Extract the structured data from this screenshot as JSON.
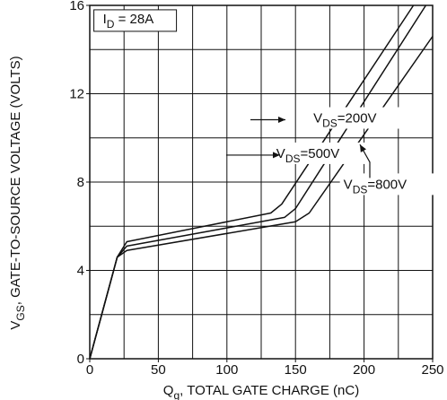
{
  "chart_data": {
    "type": "line",
    "xlabel": {
      "main": "Q",
      "sub": "g",
      "rest": ", TOTAL GATE CHARGE (nC)"
    },
    "ylabel": {
      "main": "V",
      "sub": "GS",
      "rest": ", GATE-TO-SOURCE VOLTAGE (VOLTS)"
    },
    "xlim": [
      0,
      250
    ],
    "ylim": [
      0,
      16
    ],
    "xticks": [
      0,
      50,
      100,
      150,
      200,
      250
    ],
    "yticks": [
      0,
      4,
      8,
      12,
      16
    ],
    "xgrid": [
      0,
      25,
      50,
      75,
      100,
      125,
      150,
      175,
      200,
      225,
      250
    ],
    "ygrid": [
      0,
      2,
      4,
      6,
      8,
      10,
      12,
      14,
      16
    ],
    "grid": true,
    "condition_box": {
      "main": "I",
      "sub": "D",
      "rest": " = 28A"
    },
    "series": [
      {
        "name": "VDS=200V",
        "label": {
          "main": "V",
          "sub": "DS",
          "rest": "=200V"
        },
        "x": [
          0,
          20,
          27,
          132,
          140,
          236
        ],
        "y": [
          0,
          4.6,
          5.3,
          6.6,
          7.0,
          16
        ]
      },
      {
        "name": "VDS=500V",
        "label": {
          "main": "V",
          "sub": "DS",
          "rest": "=500V"
        },
        "x": [
          0,
          20,
          27,
          142,
          150,
          245
        ],
        "y": [
          0,
          4.6,
          5.1,
          6.4,
          6.8,
          16
        ]
      },
      {
        "name": "VDS=800V",
        "label": {
          "main": "V",
          "sub": "DS",
          "rest": "=800V"
        },
        "x": [
          0,
          20,
          27,
          150,
          160,
          250
        ],
        "y": [
          0,
          4.6,
          4.9,
          6.2,
          6.6,
          14.6
        ]
      }
    ]
  }
}
